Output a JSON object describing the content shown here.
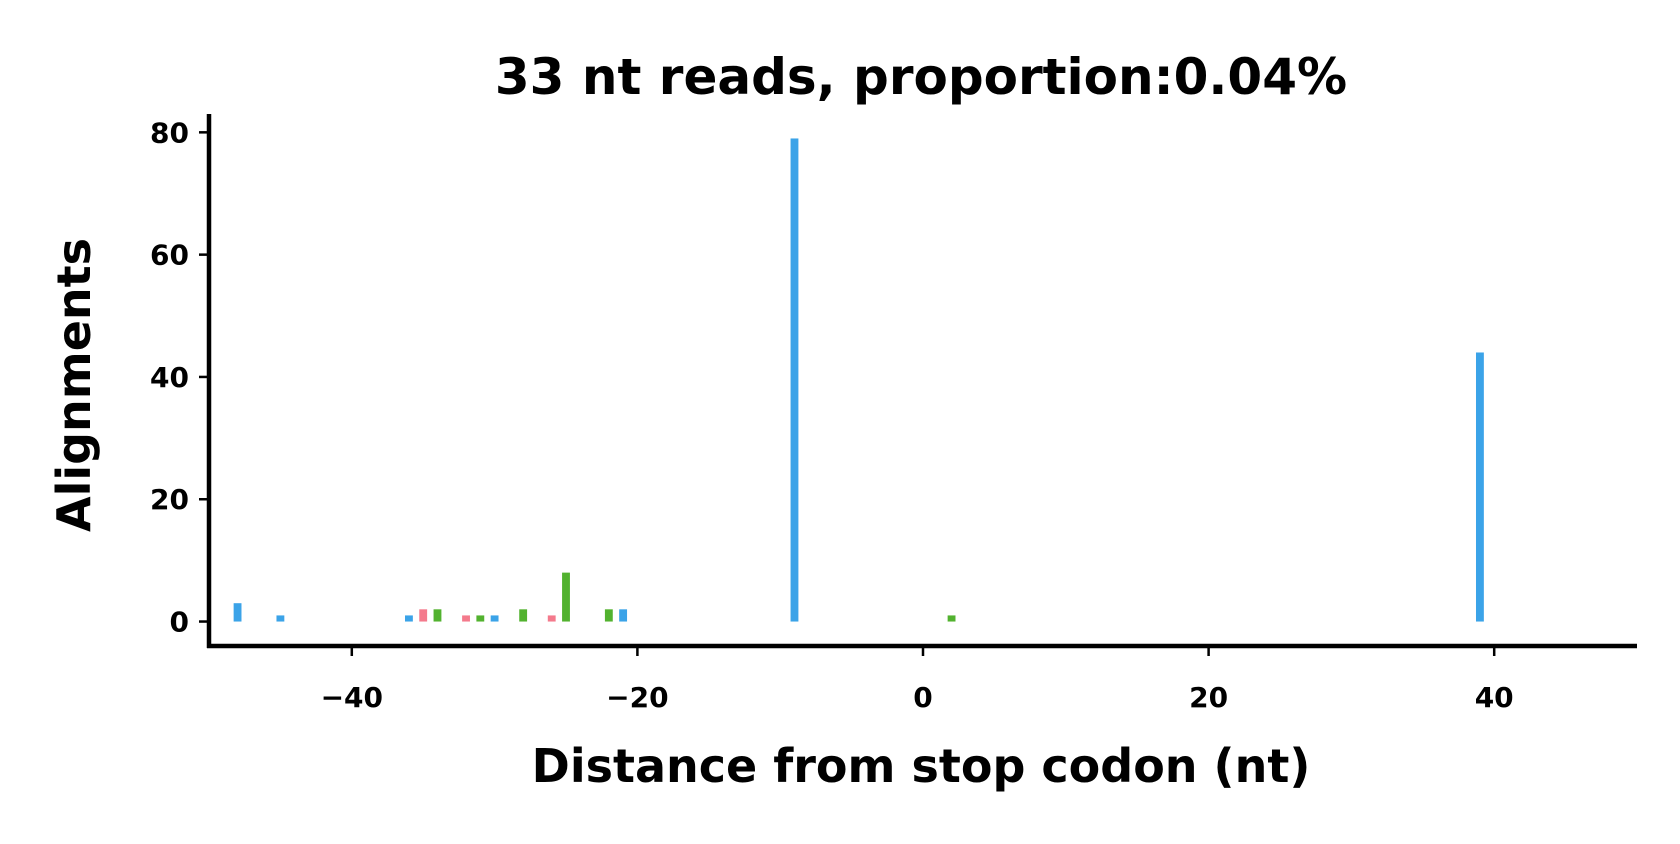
{
  "chart_data": {
    "type": "bar",
    "title": "33 nt reads, proportion:0.04%",
    "xlabel": "Distance from stop codon (nt)",
    "ylabel": "Alignments",
    "xlim": [
      -50,
      50
    ],
    "ylim": [
      -4,
      83
    ],
    "xticks": [
      -40,
      -20,
      0,
      20,
      40
    ],
    "xtick_labels": [
      "−40",
      "−20",
      "0",
      "20",
      "40"
    ],
    "yticks": [
      0,
      20,
      40,
      60,
      80
    ],
    "ytick_labels": [
      "0",
      "20",
      "40",
      "60",
      "80"
    ],
    "grid": false,
    "colors": {
      "blue": "#3ba3e8",
      "pink": "#f47a8c",
      "green": "#52b22f"
    },
    "series": [
      {
        "color": "#3ba3e8",
        "x": [
          -48,
          -45,
          -36,
          -30,
          -21,
          -9,
          39
        ],
        "values": [
          3,
          1,
          1,
          1,
          2,
          79,
          44
        ]
      },
      {
        "color": "#f47a8c",
        "x": [
          -35,
          -32,
          -26
        ],
        "values": [
          2,
          1,
          1
        ]
      },
      {
        "color": "#52b22f",
        "x": [
          -34,
          -31,
          -28,
          -25,
          -22,
          2
        ],
        "values": [
          2,
          1,
          2,
          8,
          2,
          1
        ]
      }
    ]
  }
}
